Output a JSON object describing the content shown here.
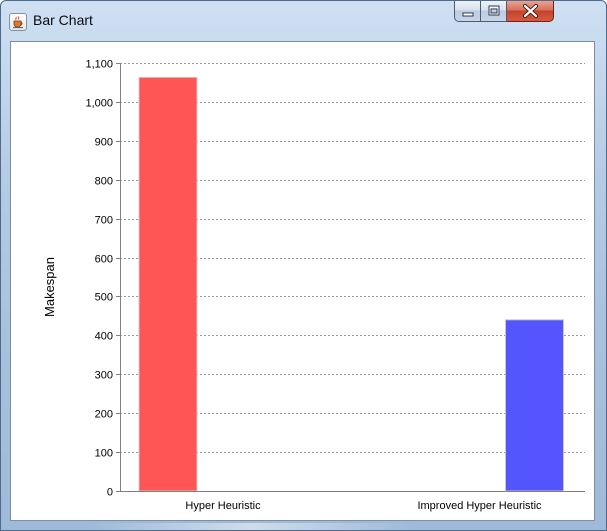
{
  "window": {
    "title": "Bar Chart",
    "icon": "java-cup-icon",
    "controls": [
      "minimize-icon",
      "maximize-icon",
      "close-icon"
    ]
  },
  "chart_data": {
    "type": "bar",
    "categories": [
      "Hyper Heuristic",
      "Improved Hyper Heuristic"
    ],
    "values": [
      1063,
      440
    ],
    "colors": [
      "#ff5555",
      "#5555ff"
    ],
    "title": "",
    "xlabel": "",
    "ylabel": "Makespan",
    "ylim": [
      0,
      1100
    ],
    "yticks": [
      0,
      100,
      200,
      300,
      400,
      500,
      600,
      700,
      800,
      900,
      1000,
      1100
    ],
    "ytick_labels": [
      "0",
      "100",
      "200",
      "300",
      "400",
      "500",
      "600",
      "700",
      "800",
      "900",
      "1,000",
      "1,100"
    ],
    "grid": true,
    "legend": "none"
  }
}
